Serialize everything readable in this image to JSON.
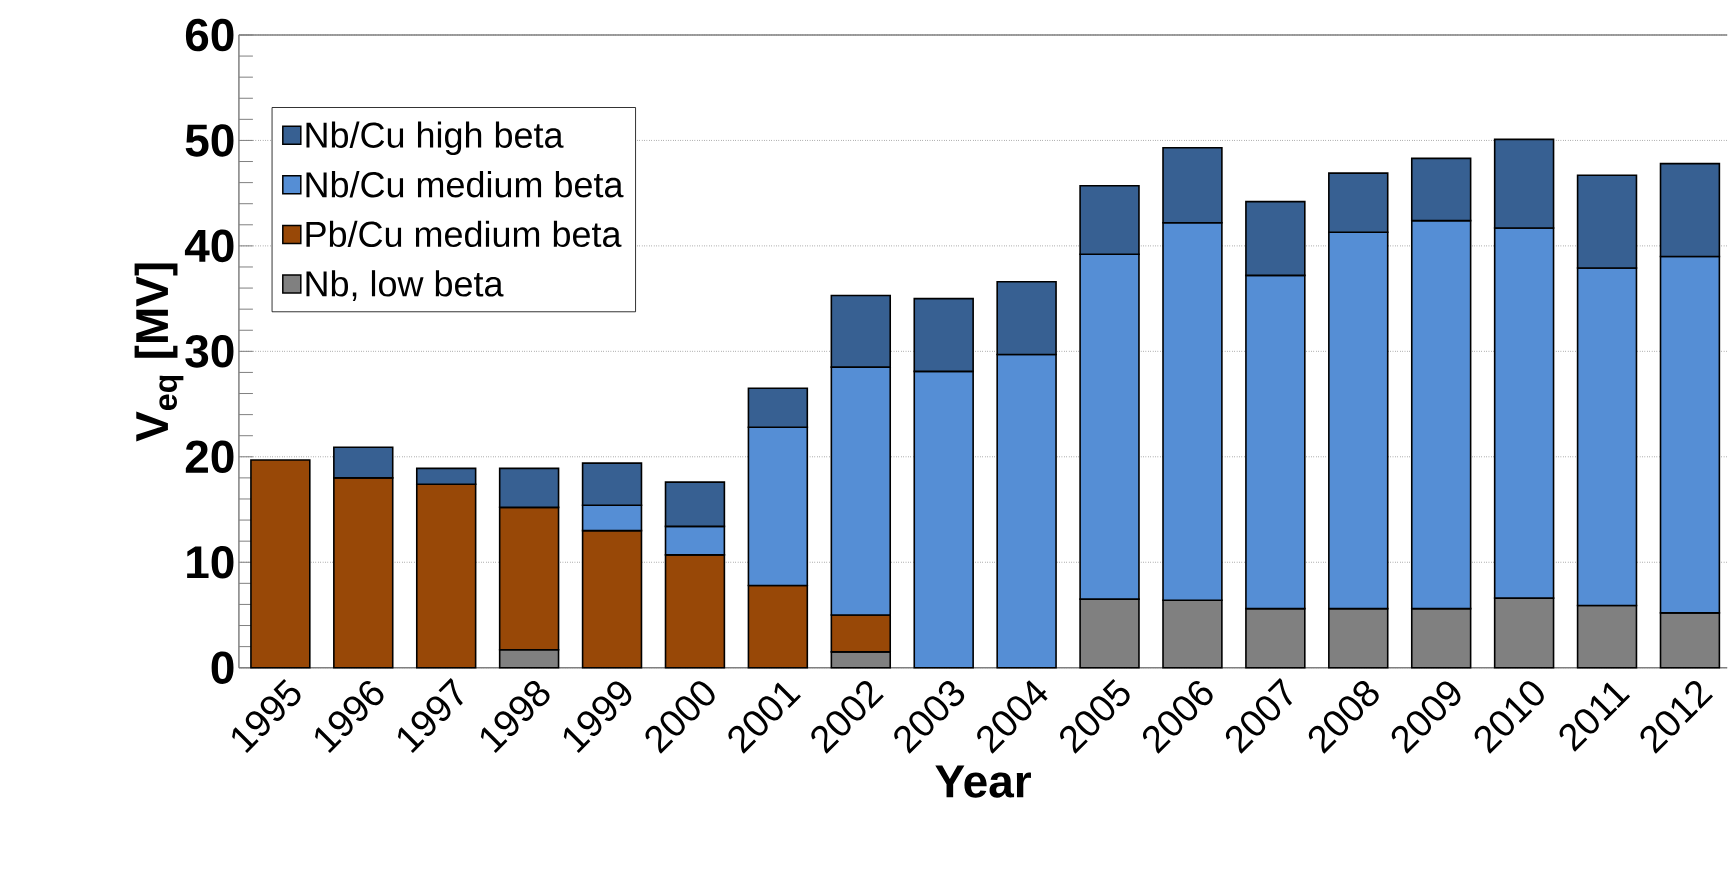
{
  "chart_data": {
    "type": "bar",
    "stacked": true,
    "xlabel": "Year",
    "ylabel": "V$_{eq}$ [MV]",
    "categories": [
      "1995",
      "1996",
      "1997",
      "1998",
      "1999",
      "2000",
      "2001",
      "2002",
      "2003",
      "2004",
      "2005",
      "2006",
      "2007",
      "2008",
      "2009",
      "2010",
      "2011",
      "2012"
    ],
    "series": [
      {
        "name": "Nb, low beta",
        "color": "#808080",
        "values": [
          null,
          null,
          null,
          1.7,
          null,
          null,
          null,
          1.5,
          null,
          null,
          6.5,
          6.4,
          5.6,
          5.6,
          5.6,
          6.6,
          5.9,
          5.2
        ]
      },
      {
        "name": "Pb/Cu medium beta",
        "color": "#984807",
        "values": [
          19.7,
          18.0,
          17.4,
          13.5,
          13.0,
          10.7,
          7.8,
          3.5,
          null,
          null,
          null,
          null,
          null,
          null,
          null,
          null,
          null,
          null
        ]
      },
      {
        "name": "Nb/Cu medium beta",
        "color": "#558ed5",
        "values": [
          null,
          null,
          null,
          null,
          2.4,
          2.7,
          15.0,
          23.5,
          28.1,
          29.7,
          32.7,
          35.8,
          31.6,
          35.7,
          36.8,
          35.1,
          32.0,
          33.8
        ]
      },
      {
        "name": "Nb/Cu high beta",
        "color": "#376092",
        "values": [
          null,
          2.9,
          1.5,
          3.7,
          4.0,
          4.2,
          3.7,
          6.8,
          6.9,
          6.9,
          6.5,
          7.1,
          7.0,
          5.6,
          5.9,
          8.4,
          8.8,
          8.8
        ]
      }
    ],
    "ylim": [
      0,
      60
    ],
    "yticks": [
      0,
      10,
      20,
      30,
      40,
      50,
      60
    ],
    "grid": "y",
    "legend": "top left"
  }
}
